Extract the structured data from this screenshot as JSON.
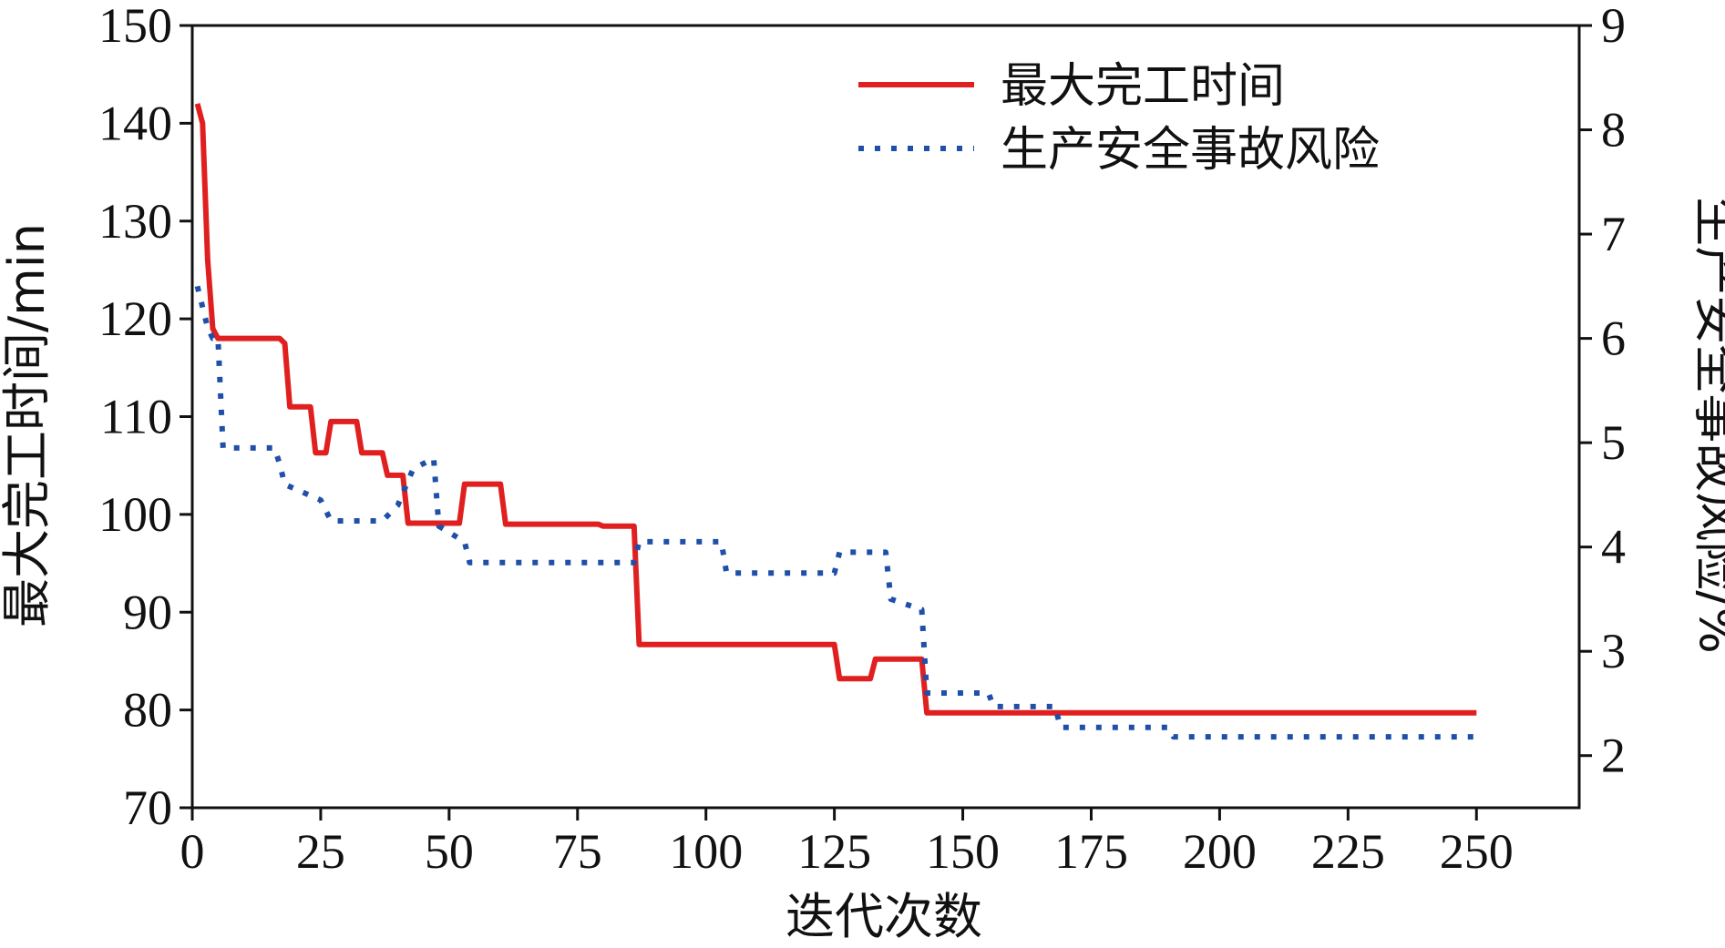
{
  "chart_data": {
    "type": "line",
    "xlabel": "迭代次数",
    "ylabel_left": "最大完工时间/min",
    "ylabel_right": "生产安全事故风险/%",
    "xlim": [
      0,
      270
    ],
    "x_ticks": [
      0,
      25,
      50,
      75,
      100,
      125,
      150,
      175,
      200,
      225,
      250
    ],
    "ylim_left": [
      70,
      150
    ],
    "y_ticks_left": [
      70,
      80,
      90,
      100,
      110,
      120,
      130,
      140,
      150
    ],
    "ylim_right": [
      1.5,
      9
    ],
    "y_ticks_right": [
      2,
      3,
      4,
      5,
      6,
      7,
      8,
      9
    ],
    "legend_position": "top-right",
    "grid": false,
    "series": [
      {
        "name": "最大完工时间",
        "axis": "left",
        "color": "#e02020",
        "style": "solid",
        "points": [
          [
            1,
            142
          ],
          [
            2,
            140
          ],
          [
            3,
            126
          ],
          [
            4,
            119
          ],
          [
            5,
            118
          ],
          [
            17,
            118
          ],
          [
            18,
            117.5
          ],
          [
            19,
            111
          ],
          [
            23,
            111
          ],
          [
            24,
            106.3
          ],
          [
            26,
            106.3
          ],
          [
            27,
            109.5
          ],
          [
            32,
            109.5
          ],
          [
            33,
            106.3
          ],
          [
            37,
            106.3
          ],
          [
            38,
            104
          ],
          [
            41,
            104
          ],
          [
            42,
            99.1
          ],
          [
            52,
            99.1
          ],
          [
            53,
            103.1
          ],
          [
            60,
            103.1
          ],
          [
            61,
            99
          ],
          [
            79,
            99
          ],
          [
            80,
            98.8
          ],
          [
            86,
            98.8
          ],
          [
            87,
            86.7
          ],
          [
            125,
            86.7
          ],
          [
            126,
            83.2
          ],
          [
            132,
            83.2
          ],
          [
            133,
            85.2
          ],
          [
            142,
            85.2
          ],
          [
            143,
            79.7
          ],
          [
            250,
            79.7
          ]
        ]
      },
      {
        "name": "生产安全事故风险",
        "axis": "right",
        "color": "#1f4fa8",
        "style": "dotted",
        "points": [
          [
            1,
            6.5
          ],
          [
            2,
            6.3
          ],
          [
            3,
            6.1
          ],
          [
            4,
            6.0
          ],
          [
            5,
            6.0
          ],
          [
            6,
            4.95
          ],
          [
            16,
            4.95
          ],
          [
            17,
            4.8
          ],
          [
            18,
            4.6
          ],
          [
            25,
            4.45
          ],
          [
            27,
            4.25
          ],
          [
            37,
            4.25
          ],
          [
            40,
            4.4
          ],
          [
            43,
            4.75
          ],
          [
            47,
            4.85
          ],
          [
            48,
            4.2
          ],
          [
            53,
            4.05
          ],
          [
            54,
            3.85
          ],
          [
            86,
            3.85
          ],
          [
            87,
            4.05
          ],
          [
            103,
            4.05
          ],
          [
            104,
            3.75
          ],
          [
            125,
            3.75
          ],
          [
            126,
            3.95
          ],
          [
            135,
            3.95
          ],
          [
            136,
            3.5
          ],
          [
            142,
            3.4
          ],
          [
            143,
            2.6
          ],
          [
            155,
            2.6
          ],
          [
            156,
            2.47
          ],
          [
            168,
            2.47
          ],
          [
            169,
            2.27
          ],
          [
            190,
            2.27
          ],
          [
            191,
            2.18
          ],
          [
            250,
            2.18
          ]
        ]
      }
    ]
  }
}
